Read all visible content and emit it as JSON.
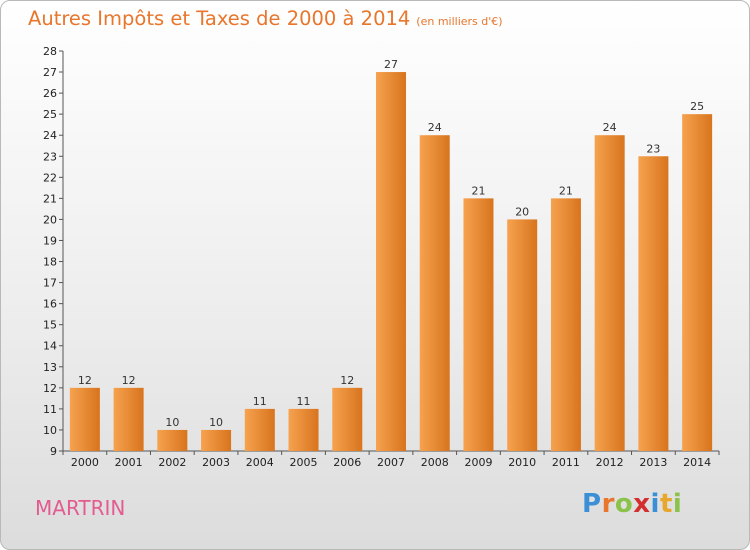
{
  "header": {
    "title": "Autres Impôts et Taxes de 2000 à 2014",
    "unit": "(en milliers d'€)"
  },
  "commune": "MARTRIN",
  "logo": {
    "text": "Proxiti",
    "letters": [
      {
        "ch": "P",
        "color": "#3a8fd6"
      },
      {
        "ch": "r",
        "color": "#e8762c"
      },
      {
        "ch": "o",
        "color": "#8bc34a"
      },
      {
        "ch": "x",
        "color": "#d32f2f"
      },
      {
        "ch": "i",
        "color": "#3a8fd6"
      },
      {
        "ch": "t",
        "color": "#e8a72c"
      },
      {
        "ch": "i",
        "color": "#8bc34a"
      }
    ]
  },
  "colors": {
    "title": "#e8762c",
    "bar_light": "#f6a24f",
    "bar_dark": "#d8741d",
    "commune": "#e35b8f"
  },
  "chart_data": {
    "type": "bar",
    "title": "Autres Impôts et Taxes de 2000 à 2014",
    "subtitle": "(en milliers d'€)",
    "categories": [
      "2000",
      "2001",
      "2002",
      "2003",
      "2004",
      "2005",
      "2006",
      "2007",
      "2008",
      "2009",
      "2010",
      "2011",
      "2012",
      "2013",
      "2014"
    ],
    "values": [
      12,
      12,
      10,
      10,
      11,
      11,
      12,
      27,
      24,
      21,
      20,
      21,
      24,
      23,
      25
    ],
    "ylim": [
      9,
      28
    ],
    "yticks": [
      9,
      10,
      11,
      12,
      13,
      14,
      15,
      16,
      17,
      18,
      19,
      20,
      21,
      22,
      23,
      24,
      25,
      26,
      27,
      28
    ],
    "grid": false,
    "data_labels": true
  }
}
